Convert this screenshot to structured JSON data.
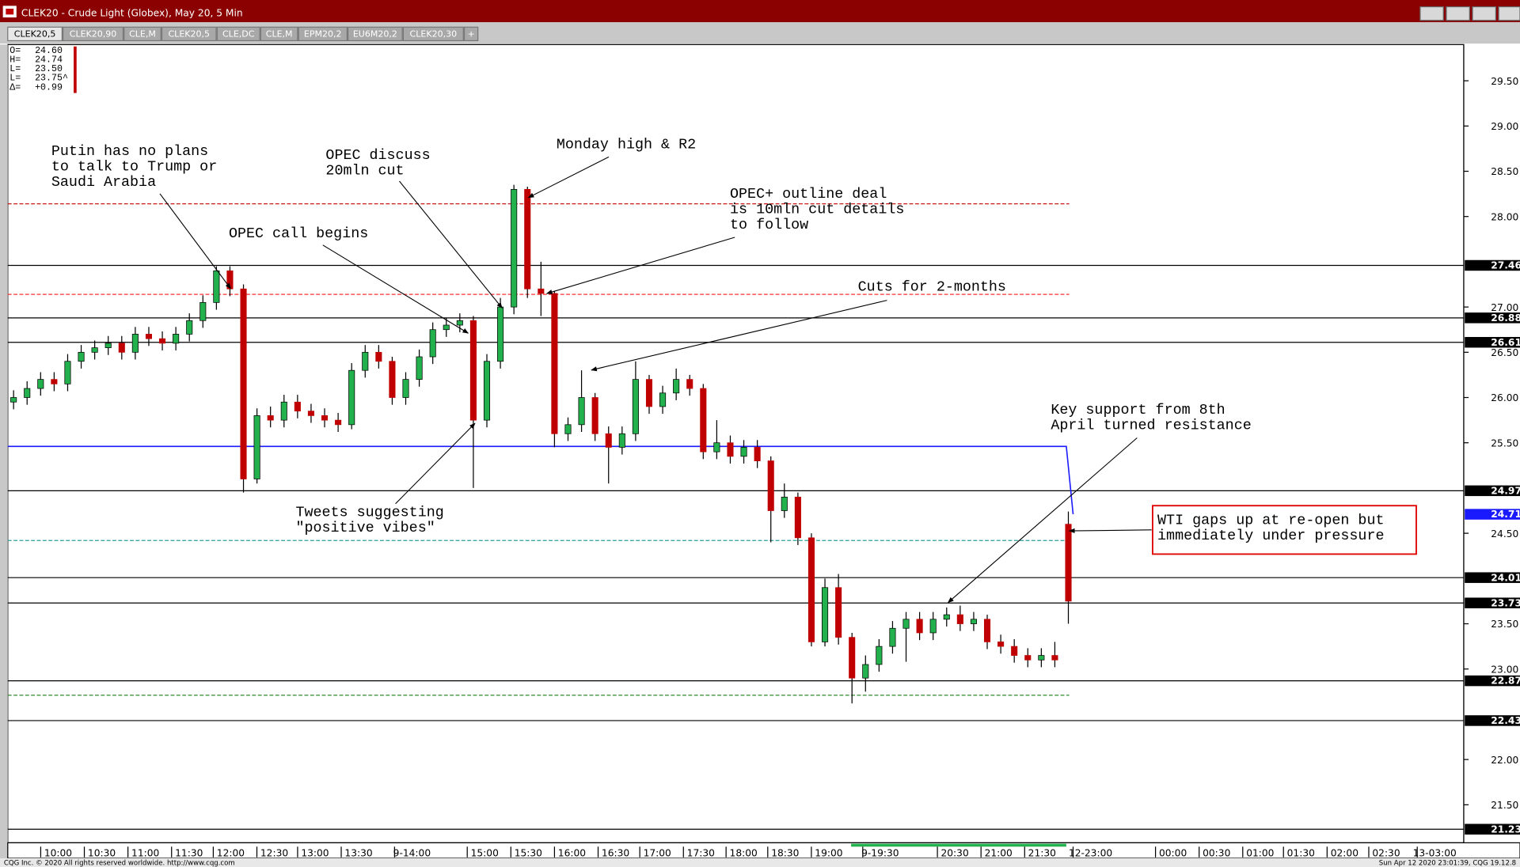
{
  "window_title": "CLEK20 - Crude Light (Globex), May 20, 5 Min",
  "tabs": [
    "CLEK20,5",
    "CLEK20,90",
    "CLE,M",
    "CLEK20,5",
    "CLE,DC",
    "CLE,M",
    "EPM20,2",
    "EU6M20,2",
    "CLEK20,30",
    "+"
  ],
  "ohlc_box": [
    {
      "label": "O=",
      "value": "24.60"
    },
    {
      "label": "H=",
      "value": "24.74"
    },
    {
      "label": "L=",
      "value": "23.50"
    },
    {
      "label": "L=",
      "value": "23.75^"
    },
    {
      "label": "Δ=",
      "value": "+0.99"
    }
  ],
  "footer": {
    "left": "CQG Inc. © 2020 All rights reserved worldwide. http://www.cqg.com",
    "right": "Sun Apr 12 2020 23:01:39, CQG 19.12.8"
  },
  "chart_data": {
    "type": "candlestick",
    "up_color": "#22b14c",
    "down_color": "#c00000",
    "ylim": [
      21.08,
      29.9
    ],
    "yticks": [
      {
        "value": 29.5,
        "label": "29.50"
      },
      {
        "value": 29,
        "label": "29.00"
      },
      {
        "value": 28.5,
        "label": "28.50"
      },
      {
        "value": 28,
        "label": "28.00"
      },
      {
        "value": 27,
        "label": "27.00"
      },
      {
        "value": 26.5,
        "label": "26.50"
      },
      {
        "value": 26,
        "label": "26.00"
      },
      {
        "value": 25.5,
        "label": "25.50"
      },
      {
        "value": 24.5,
        "label": "24.50"
      },
      {
        "value": 23.5,
        "label": "23.50"
      },
      {
        "value": 23,
        "label": "23.00"
      },
      {
        "value": 22,
        "label": "22.00"
      },
      {
        "value": 21.5,
        "label": "21.50"
      }
    ],
    "categories": [
      "10:00",
      "10:30",
      "11:00",
      "11:30",
      "12:00",
      "12:30",
      "13:00",
      "13:30",
      "9-14:00",
      "15:00",
      "15:30",
      "16:00",
      "16:30",
      "17:00",
      "17:30",
      "18:00",
      "18:30",
      "19:00",
      "9-19:30",
      "20:30",
      "21:00",
      "21:30",
      "12-23:00",
      "00:00",
      "00:30",
      "01:00",
      "01:30",
      "02:00",
      "02:30",
      "13-03:00"
    ],
    "open": [
      25.95,
      26.0,
      26.1,
      26.2,
      26.15,
      26.4,
      26.5,
      26.55,
      26.6,
      26.5,
      26.7,
      26.65,
      26.6,
      26.7,
      26.85,
      27.05,
      27.4,
      27.2,
      25.1,
      25.8,
      25.75,
      25.95,
      25.85,
      25.8,
      25.75,
      25.7,
      26.3,
      26.5,
      26.4,
      26.0,
      26.2,
      26.45,
      26.75,
      26.8,
      26.85,
      25.75,
      26.4,
      27.0,
      28.3,
      27.2,
      27.15,
      25.6,
      25.7,
      26.0,
      25.6,
      25.45,
      25.6,
      26.2,
      25.9,
      26.05,
      26.2,
      26.1,
      25.4,
      25.5,
      25.35,
      25.45,
      25.3,
      24.75,
      24.9,
      24.45,
      23.3,
      23.9,
      23.35,
      22.9,
      23.05,
      23.25,
      23.45,
      23.55,
      23.4,
      23.55,
      23.6,
      23.5,
      23.55,
      23.3,
      23.25,
      23.15,
      23.1,
      23.15,
      24.6
    ],
    "high": [
      26.08,
      26.18,
      26.28,
      26.28,
      26.48,
      26.58,
      26.63,
      26.68,
      26.68,
      26.78,
      26.78,
      26.73,
      26.78,
      26.93,
      27.13,
      27.45,
      27.45,
      27.25,
      25.88,
      25.9,
      26.03,
      26.03,
      25.93,
      25.88,
      25.83,
      26.38,
      26.58,
      26.58,
      26.45,
      26.28,
      26.53,
      26.83,
      26.88,
      26.93,
      26.9,
      26.48,
      27.1,
      28.35,
      28.33,
      27.5,
      27.18,
      25.78,
      26.3,
      26.05,
      25.68,
      25.68,
      26.4,
      26.25,
      26.13,
      26.32,
      26.25,
      26.15,
      25.75,
      25.58,
      25.53,
      25.53,
      25.35,
      25.05,
      24.95,
      24.5,
      24.0,
      24.05,
      23.4,
      23.15,
      23.33,
      23.53,
      23.63,
      23.63,
      23.63,
      23.68,
      23.7,
      23.63,
      23.6,
      23.38,
      23.33,
      23.23,
      23.23,
      23.3,
      24.74
    ],
    "low": [
      25.87,
      25.92,
      26.02,
      26.07,
      26.07,
      26.32,
      26.42,
      26.47,
      26.42,
      26.42,
      26.57,
      26.52,
      26.52,
      26.62,
      26.77,
      26.97,
      27.12,
      24.95,
      25.05,
      25.67,
      25.67,
      25.77,
      25.72,
      25.67,
      25.62,
      25.65,
      26.22,
      26.32,
      25.92,
      25.92,
      26.12,
      26.37,
      26.67,
      26.72,
      25.0,
      25.67,
      26.32,
      26.92,
      27.1,
      26.9,
      25.45,
      25.52,
      25.62,
      25.52,
      25.05,
      25.37,
      25.52,
      25.82,
      25.82,
      25.97,
      26.02,
      25.32,
      25.32,
      25.27,
      25.27,
      25.22,
      24.4,
      24.67,
      24.37,
      23.25,
      23.25,
      23.27,
      22.62,
      22.75,
      22.97,
      23.17,
      23.08,
      23.32,
      23.32,
      23.47,
      23.42,
      23.42,
      23.22,
      23.17,
      23.07,
      23.02,
      23.02,
      23.02,
      23.5
    ],
    "close": [
      26.0,
      26.1,
      26.2,
      26.15,
      26.4,
      26.5,
      26.55,
      26.6,
      26.5,
      26.7,
      26.65,
      26.6,
      26.7,
      26.85,
      27.05,
      27.4,
      27.2,
      25.1,
      25.8,
      25.75,
      25.95,
      25.85,
      25.8,
      25.75,
      25.7,
      26.3,
      26.5,
      26.4,
      26.0,
      26.2,
      26.45,
      26.75,
      26.8,
      26.85,
      25.75,
      26.4,
      27.0,
      28.3,
      27.2,
      27.15,
      25.6,
      25.7,
      26.0,
      25.6,
      25.45,
      25.6,
      26.2,
      25.9,
      26.05,
      26.2,
      26.1,
      25.4,
      25.5,
      25.35,
      25.45,
      25.3,
      24.75,
      24.9,
      24.45,
      23.3,
      23.9,
      23.35,
      22.9,
      23.05,
      23.25,
      23.45,
      23.55,
      23.4,
      23.55,
      23.6,
      23.5,
      23.55,
      23.3,
      23.25,
      23.15,
      23.1,
      23.15,
      23.1,
      23.75
    ],
    "levels": [
      {
        "value": 28.14,
        "color": "#c00000",
        "style": "dashed"
      },
      {
        "value": 27.46,
        "color": "#000000",
        "style": "solid"
      },
      {
        "value": 27.14,
        "color": "#ff3030",
        "style": "dashed"
      },
      {
        "value": 26.88,
        "color": "#000000",
        "style": "solid"
      },
      {
        "value": 26.61,
        "color": "#000000",
        "style": "solid"
      },
      {
        "value": 24.97,
        "color": "#000000",
        "style": "solid"
      },
      {
        "value": 24.42,
        "color": "#2aa198",
        "style": "dashed"
      },
      {
        "value": 24.01,
        "color": "#000000",
        "style": "solid"
      },
      {
        "value": 23.73,
        "color": "#000000",
        "style": "solid"
      },
      {
        "value": 22.87,
        "color": "#000000",
        "style": "solid"
      },
      {
        "value": 22.71,
        "color": "#2e8b2e",
        "style": "dashed"
      },
      {
        "value": 22.43,
        "color": "#000000",
        "style": "solid"
      },
      {
        "value": 21.23,
        "color": "#000000",
        "style": "solid"
      }
    ],
    "trendline": {
      "color": "#1a1aff",
      "values": [
        25.46,
        25.46,
        24.71
      ]
    },
    "annotations": [
      {
        "lines": [
          "Putin has no plans",
          "to talk to Trump or",
          "Saudi Arabia"
        ]
      },
      {
        "lines": [
          "OPEC call begins"
        ]
      },
      {
        "lines": [
          "OPEC discuss",
          "20mln cut"
        ]
      },
      {
        "lines": [
          "Monday high & R2"
        ]
      },
      {
        "lines": [
          "OPEC+ outline deal",
          "is 10mln cut details",
          "to follow"
        ]
      },
      {
        "lines": [
          "Cuts for 2-months"
        ]
      },
      {
        "lines": [
          "Tweets suggesting",
          "\"positive vibes\""
        ]
      },
      {
        "lines": [
          "Key support from 8th",
          "April turned resistance"
        ]
      },
      {
        "lines": [
          "WTI gaps up at re-open but",
          "immediately under pressure"
        ]
      }
    ]
  }
}
